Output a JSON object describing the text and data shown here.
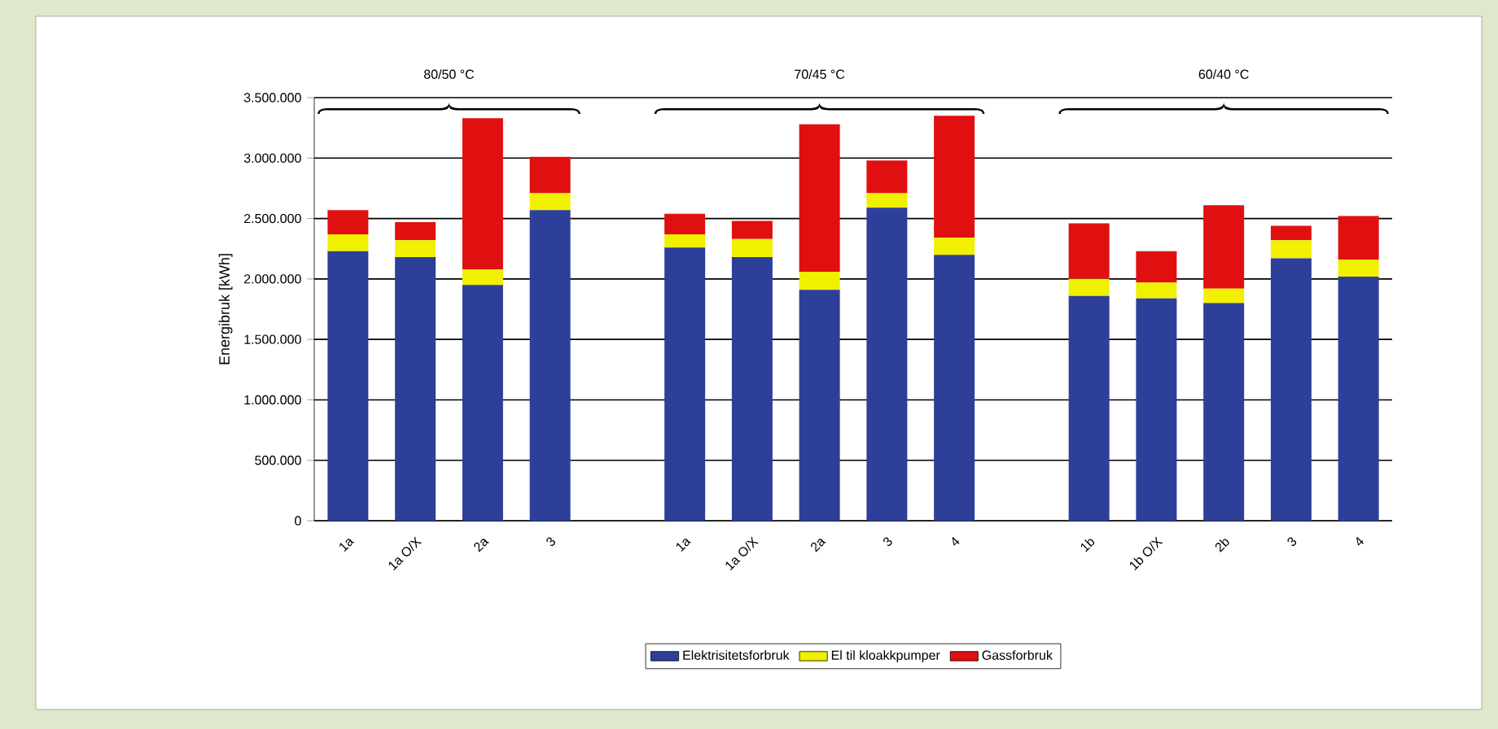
{
  "chart_data": {
    "type": "bar",
    "stacked": true,
    "categories": [
      "1a",
      "1a O/X",
      "2a",
      "3",
      null,
      "1a",
      "1a O/X",
      "2a",
      "3",
      "4",
      null,
      "1b",
      "1b O/X",
      "2b",
      "3",
      "4"
    ],
    "ylabel": "Energibruk [kWh]",
    "ylim": [
      0,
      3500000
    ],
    "yticks": [
      0,
      {
        "value": 500000,
        "label": "500.000"
      },
      {
        "value": 1000000,
        "label": "1.000.000"
      },
      {
        "value": 1500000,
        "label": "1.500.000"
      },
      {
        "value": 2000000,
        "label": "2.000.000"
      },
      {
        "value": 2500000,
        "label": "2.500.000"
      },
      {
        "value": 3000000,
        "label": "3.000.000"
      },
      {
        "value": 3500000,
        "label": "3.500.000"
      }
    ],
    "grid": "y",
    "legend": "bottom",
    "annotations": [
      "80/50 °C",
      "70/45 °C",
      "60/40 °C"
    ],
    "series": [
      {
        "name": "Elektrisitetsforbruk",
        "color": "#2e3f9a",
        "values": [
          2230000,
          2180000,
          1950000,
          2570000,
          null,
          2260000,
          2180000,
          1910000,
          2590000,
          2200000,
          null,
          1860000,
          1840000,
          1800000,
          2170000,
          2020000
        ]
      },
      {
        "name": "El til kloakkpumper",
        "color": "#f0f000",
        "values": [
          140000,
          140000,
          130000,
          140000,
          null,
          110000,
          150000,
          150000,
          120000,
          140000,
          null,
          140000,
          130000,
          120000,
          150000,
          140000
        ]
      },
      {
        "name": "Gassforbruk",
        "color": "#e01010",
        "values": [
          200000,
          150000,
          1250000,
          300000,
          null,
          170000,
          150000,
          1220000,
          270000,
          1010000,
          null,
          460000,
          260000,
          690000,
          120000,
          360000
        ]
      }
    ]
  }
}
